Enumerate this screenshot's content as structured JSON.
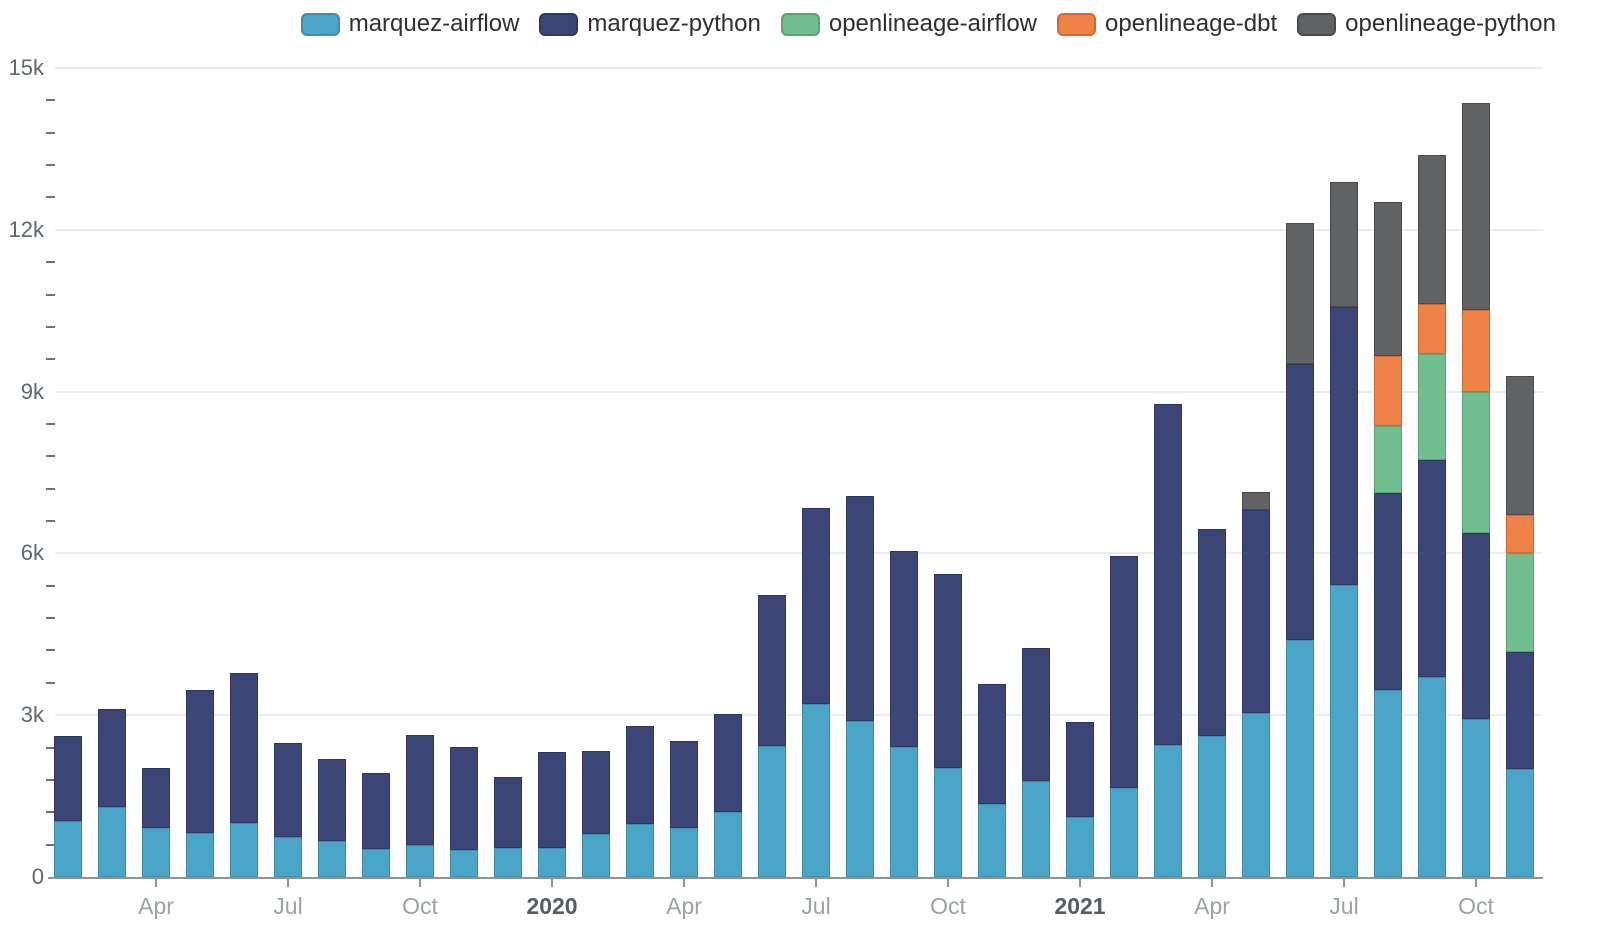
{
  "legend": {
    "position": "top-right",
    "items": [
      {
        "label": "marquez-airflow",
        "color": "#4ba5c8",
        "border": "#3e8cac"
      },
      {
        "label": "marquez-python",
        "color": "#3d4577",
        "border": "#2f3660"
      },
      {
        "label": "openlineage-airflow",
        "color": "#72be8e",
        "border": "#5aa377"
      },
      {
        "label": "openlineage-dbt",
        "color": "#ef8247",
        "border": "#d06a33"
      },
      {
        "label": "openlineage-python",
        "color": "#616263",
        "border": "#4a4b4d"
      }
    ]
  },
  "y_axis": {
    "labels": [
      "0",
      "3k",
      "6k",
      "9k",
      "12k",
      "15k"
    ],
    "major_step": 3000,
    "minor_step": 600,
    "max": 15000,
    "label_color": "#5f6673"
  },
  "x_axis": {
    "ticks": [
      {
        "label": "Apr",
        "month_index": 2,
        "bold": false
      },
      {
        "label": "Jul",
        "month_index": 5,
        "bold": false
      },
      {
        "label": "Oct",
        "month_index": 8,
        "bold": false
      },
      {
        "label": "2020",
        "month_index": 11,
        "bold": true
      },
      {
        "label": "Apr",
        "month_index": 14,
        "bold": false
      },
      {
        "label": "Jul",
        "month_index": 17,
        "bold": false
      },
      {
        "label": "Oct",
        "month_index": 20,
        "bold": false
      },
      {
        "label": "2021",
        "month_index": 23,
        "bold": true
      },
      {
        "label": "Apr",
        "month_index": 26,
        "bold": false
      },
      {
        "label": "Jul",
        "month_index": 29,
        "bold": false
      },
      {
        "label": "Oct",
        "month_index": 32,
        "bold": false
      }
    ]
  },
  "chart_data": {
    "type": "bar",
    "stacked": true,
    "title": "",
    "xlabel": "",
    "ylabel": "",
    "ylim": [
      0,
      15000
    ],
    "grid": true,
    "legend_position": "top-right",
    "background": "#ffffff",
    "gridline_color": "#e8ecf4",
    "x": [
      "2019-02",
      "2019-03",
      "2019-04",
      "2019-05",
      "2019-06",
      "2019-07",
      "2019-08",
      "2019-09",
      "2019-10",
      "2019-11",
      "2019-12",
      "2020-01",
      "2020-02",
      "2020-03",
      "2020-04",
      "2020-05",
      "2020-06",
      "2020-07",
      "2020-08",
      "2020-09",
      "2020-10",
      "2020-11",
      "2020-12",
      "2021-01",
      "2021-02",
      "2021-03",
      "2021-04",
      "2021-05",
      "2021-06",
      "2021-07",
      "2021-08",
      "2021-09",
      "2021-10",
      "2021-11"
    ],
    "series": [
      {
        "name": "marquez-airflow",
        "color": "#4ba5c8",
        "border": "#3e8cac",
        "values": [
          1030,
          1290,
          900,
          820,
          1000,
          735,
          660,
          525,
          590,
          495,
          530,
          540,
          805,
          980,
          900,
          1200,
          2420,
          3210,
          2900,
          2410,
          2025,
          1350,
          1780,
          1115,
          1650,
          2450,
          2615,
          3035,
          4400,
          5410,
          3470,
          3705,
          2925,
          1995
        ]
      },
      {
        "name": "marquez-python",
        "color": "#3d4577",
        "border": "#2f3660",
        "values": [
          1580,
          1820,
          1120,
          2650,
          2790,
          1755,
          1535,
          1405,
          2040,
          1920,
          1315,
          1770,
          1525,
          1825,
          1620,
          1820,
          2800,
          3640,
          4160,
          3640,
          3595,
          2225,
          2475,
          1750,
          4310,
          6320,
          3830,
          3765,
          5120,
          5150,
          3655,
          4020,
          3460,
          2185
        ]
      },
      {
        "name": "openlineage-airflow",
        "color": "#72be8e",
        "border": "#5aa377",
        "values": [
          0,
          0,
          0,
          0,
          0,
          0,
          0,
          0,
          0,
          0,
          0,
          0,
          0,
          0,
          0,
          0,
          0,
          0,
          0,
          0,
          0,
          0,
          0,
          0,
          0,
          0,
          0,
          0,
          0,
          0,
          1240,
          1970,
          2610,
          1830
        ]
      },
      {
        "name": "openlineage-dbt",
        "color": "#ef8247",
        "border": "#d06a33",
        "values": [
          0,
          0,
          0,
          0,
          0,
          0,
          0,
          0,
          0,
          0,
          0,
          0,
          0,
          0,
          0,
          0,
          0,
          0,
          0,
          0,
          0,
          0,
          0,
          0,
          0,
          0,
          0,
          0,
          0,
          0,
          1300,
          930,
          1520,
          710
        ]
      },
      {
        "name": "openlineage-python",
        "color": "#616263",
        "border": "#4a4b4d",
        "values": [
          0,
          0,
          0,
          0,
          0,
          0,
          0,
          0,
          0,
          0,
          0,
          0,
          0,
          0,
          0,
          0,
          0,
          0,
          0,
          0,
          0,
          0,
          0,
          0,
          0,
          0,
          0,
          340,
          2600,
          2320,
          2850,
          2770,
          3830,
          2570
        ]
      }
    ]
  }
}
